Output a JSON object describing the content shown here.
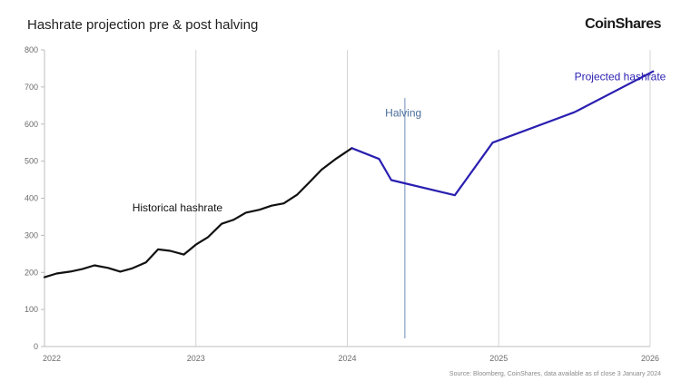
{
  "header": {
    "title": "Hashrate projection pre & post halving",
    "brand": "CoinShares"
  },
  "footer": {
    "source": "Source: Bloomberg, CoinShares, data available as of close 3 January 2024"
  },
  "colors": {
    "historical": "#111111",
    "projected": "#2a1fb0",
    "halving_line": "#8fa9c8",
    "halving_label": "#4a6d9a",
    "grid": "#d4d4d4"
  },
  "chart_data": {
    "type": "line",
    "title": "Hashrate projection pre & post halving",
    "xlabel": "",
    "ylabel": "",
    "xlim": [
      2022,
      2026
    ],
    "ylim": [
      0,
      800
    ],
    "x_ticks": [
      {
        "value": 2022,
        "label": "2022"
      },
      {
        "value": 2023,
        "label": "2023"
      },
      {
        "value": 2024,
        "label": "2024"
      },
      {
        "value": 2025,
        "label": "2025"
      },
      {
        "value": 2026,
        "label": "2026"
      }
    ],
    "y_ticks": [
      {
        "value": 0,
        "label": "0"
      },
      {
        "value": 100,
        "label": "100"
      },
      {
        "value": 200,
        "label": "200"
      },
      {
        "value": 300,
        "label": "300"
      },
      {
        "value": 400,
        "label": "400"
      },
      {
        "value": 500,
        "label": "500"
      },
      {
        "value": 600,
        "label": "600"
      },
      {
        "value": 700,
        "label": "700"
      },
      {
        "value": 800,
        "label": "800"
      }
    ],
    "grid": "vertical-major",
    "series": [
      {
        "name": "Historical hashrate",
        "x": [
          2022.0,
          2022.08,
          2022.17,
          2022.25,
          2022.33,
          2022.42,
          2022.5,
          2022.58,
          2022.67,
          2022.75,
          2022.83,
          2022.92,
          2023.0,
          2023.08,
          2023.17,
          2023.25,
          2023.33,
          2023.42,
          2023.5,
          2023.58,
          2023.67,
          2023.75,
          2023.83,
          2023.92,
          2024.03
        ],
        "values": [
          187,
          197,
          202,
          209,
          219,
          212,
          202,
          211,
          227,
          262,
          258,
          248,
          275,
          295,
          331,
          342,
          361,
          369,
          380,
          386,
          410,
          443,
          477,
          505,
          535
        ]
      },
      {
        "name": "Projected hashrate",
        "x": [
          2024.03,
          2024.21,
          2024.29,
          2024.71,
          2024.96,
          2025.5,
          2026.02
        ],
        "values": [
          535,
          506,
          449,
          408,
          550,
          632,
          742
        ]
      }
    ],
    "annotations": [
      {
        "text": "Historical hashrate",
        "x": 2022.58,
        "y": 365
      },
      {
        "text": "Halving",
        "x": 2024.37,
        "y": 620
      },
      {
        "text": "Projected hashrate",
        "x": 2025.5,
        "y": 718
      }
    ],
    "halving_marker": {
      "label": "Halving",
      "x": 2024.38,
      "y_range": [
        22,
        670
      ]
    }
  }
}
